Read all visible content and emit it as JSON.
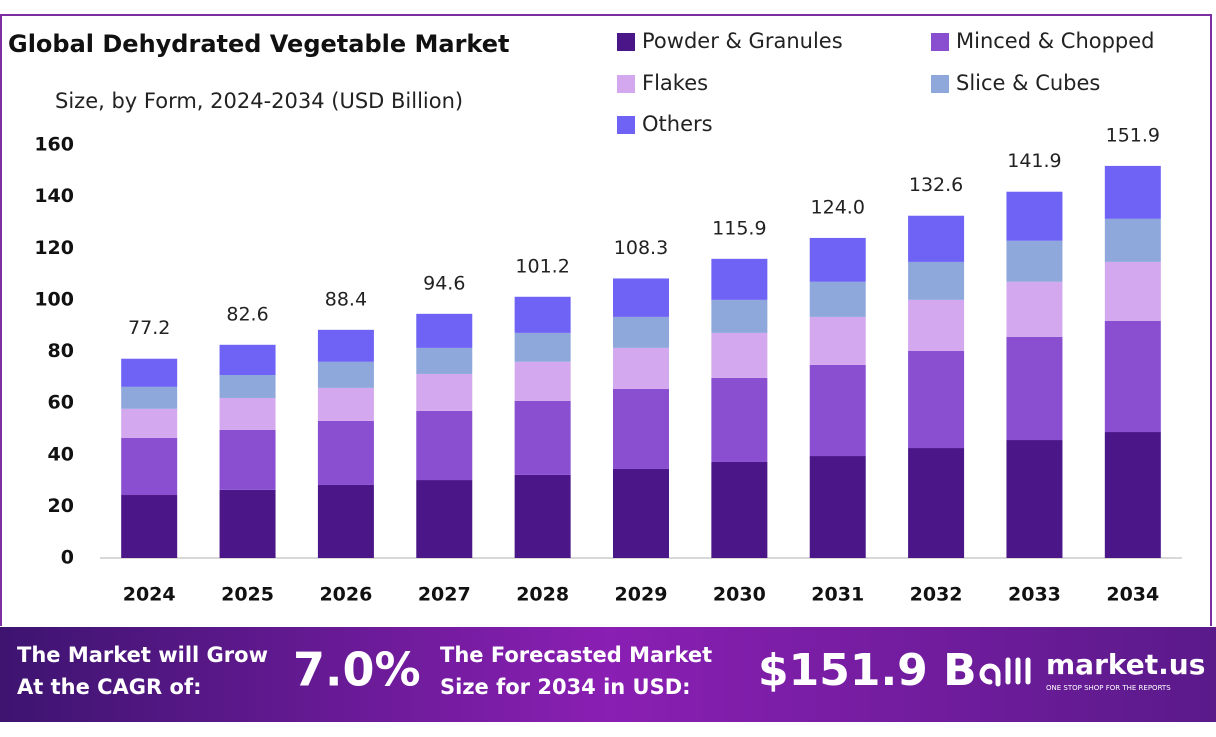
{
  "chart_data": {
    "type": "stacked_bar",
    "title": "Global Dehydrated Vegetable Market",
    "subtitle": "Size, by Form, 2024-2034 (USD Billion)",
    "categories": [
      "2024",
      "2025",
      "2026",
      "2027",
      "2028",
      "2029",
      "2030",
      "2031",
      "2032",
      "2033",
      "2034"
    ],
    "series": [
      {
        "name": "Powder & Granules",
        "color": "#4b1687",
        "values": [
          24.4,
          26.4,
          28.3,
          30.2,
          32.2,
          34.5,
          37.2,
          39.5,
          42.6,
          45.7,
          48.8
        ]
      },
      {
        "name": "Minced & Chopped",
        "color": "#8a4fd0",
        "values": [
          22.1,
          23.2,
          24.8,
          26.8,
          28.7,
          31.0,
          32.6,
          35.3,
          37.6,
          40.0,
          43.1
        ]
      },
      {
        "name": "Flakes",
        "color": "#d4a8ee",
        "values": [
          11.3,
          12.4,
          12.8,
          14.3,
          15.1,
          15.9,
          17.4,
          18.6,
          19.8,
          21.3,
          22.8
        ]
      },
      {
        "name": "Slice & Cubes",
        "color": "#8fa8dc",
        "values": [
          8.5,
          8.9,
          10.1,
          10.1,
          11.2,
          12.0,
          12.8,
          13.6,
          14.7,
          15.9,
          16.7
        ]
      },
      {
        "name": "Others",
        "color": "#6f63f5",
        "values": [
          10.9,
          11.7,
          12.4,
          13.2,
          14.0,
          14.9,
          15.9,
          17.0,
          17.9,
          19.0,
          20.5
        ]
      }
    ],
    "totals": [
      77.2,
      82.6,
      88.4,
      94.6,
      101.2,
      108.3,
      115.9,
      124,
      132.6,
      141.9,
      151.9
    ],
    "value_labels": [
      "77.2",
      "82.6",
      "88.4",
      "94.6",
      "101.2",
      "108.3",
      "115.9",
      "124.0",
      "132.6",
      "141.9",
      "151.9"
    ],
    "ylim": [
      0,
      160
    ],
    "yticks": [
      0,
      20,
      40,
      60,
      80,
      100,
      120,
      140,
      160
    ],
    "grid": false,
    "legend": "top-right"
  },
  "footer": {
    "cagr_text": [
      "The Market will Grow",
      "At the CAGR of:"
    ],
    "cagr_value": "7.0%",
    "forecast_text": [
      "The Forecasted Market",
      "Size for 2034 in USD:"
    ],
    "forecast_value": "$151.9 B",
    "brand": "market.us",
    "tagline": "ONE STOP SHOP FOR THE REPORTS"
  }
}
